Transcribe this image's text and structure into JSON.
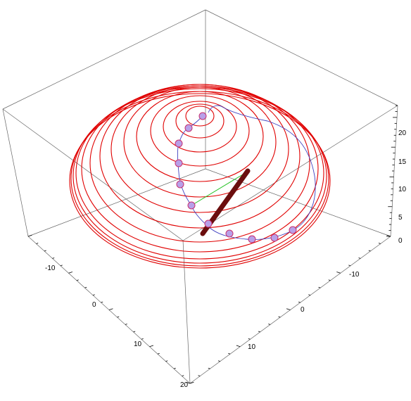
{
  "axes": {
    "x_ticks": [
      "-10",
      "0",
      "10",
      "20"
    ],
    "y_ticks": [
      "-10",
      "0",
      "10"
    ],
    "z_ticks": [
      "0",
      "5",
      "10",
      "15",
      "20"
    ]
  },
  "colors": {
    "spiral": "#e00000",
    "path": "#4040c0",
    "beads": "#b8a0e8",
    "rod": "#6b0e0e",
    "link": "#20c020",
    "box": "#666666"
  }
}
